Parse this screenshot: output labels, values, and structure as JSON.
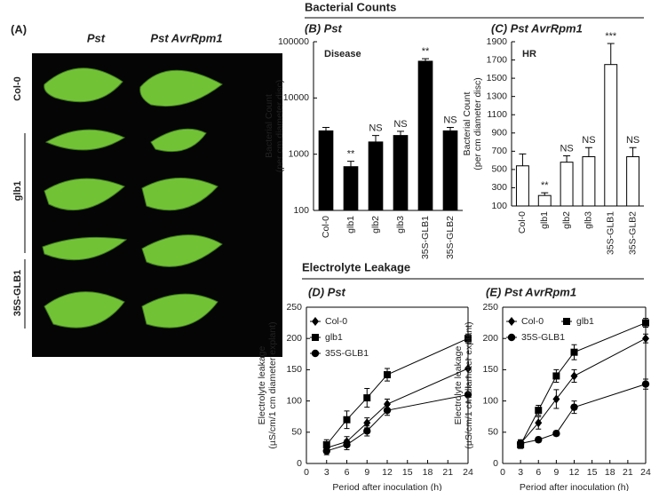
{
  "figure": {
    "section_titles": [
      "Bacterial Counts",
      "Electrolyte Leakage"
    ],
    "photo_panel": {
      "label": "(A)",
      "columns": [
        "Pst",
        "Pst AvrRpm1"
      ],
      "rows": [
        "Col-0",
        "glb1",
        "35S-GLB1"
      ]
    }
  },
  "chart_data": [
    {
      "type": "bar",
      "title": "(B) Pst",
      "label": "Disease",
      "ylabel": [
        "Bacterial Count",
        "(per cm diameter disc)"
      ],
      "categories": [
        "Col-0",
        "glb1",
        "glb2",
        "glb3",
        "35S-GLB1",
        "35S-GLB2"
      ],
      "values": [
        2600,
        600,
        1650,
        2150,
        45000,
        2600
      ],
      "errors": [
        400,
        150,
        500,
        400,
        5000,
        400
      ],
      "annotations": [
        null,
        "**",
        "NS",
        "NS",
        "**",
        "NS"
      ],
      "color": "#000000",
      "log_scale": true,
      "ylim": [
        100,
        100000
      ],
      "yticks": [
        100,
        1000,
        10000,
        100000
      ]
    },
    {
      "type": "bar",
      "title": "(C) Pst AvrRpm1",
      "label": "HR",
      "ylabel": [
        "Bacterial Count",
        "(per cm diameter disc)"
      ],
      "categories": [
        "Col-0",
        "glb1",
        "glb2",
        "glb3",
        "35S-GLB1",
        "35S-GLB2"
      ],
      "values": [
        540,
        215,
        580,
        640,
        1650,
        640
      ],
      "errors": [
        130,
        30,
        70,
        100,
        230,
        100
      ],
      "annotations": [
        null,
        "**",
        "NS",
        "NS",
        "***",
        "NS"
      ],
      "color": "#ffffff",
      "log_scale": false,
      "ylim": [
        100,
        1900
      ],
      "yticks": [
        100,
        300,
        500,
        700,
        900,
        1100,
        1300,
        1500,
        1700,
        1900
      ]
    },
    {
      "type": "line",
      "title": "(D) Pst",
      "xlabel": "Period after inoculation (h)",
      "ylabel": [
        "Electrolyte leakage",
        "(µS/cm/1 cm diameter explant)"
      ],
      "x": [
        3,
        6,
        9,
        12,
        24
      ],
      "series": [
        {
          "name": "Col-0",
          "color": "#000000",
          "marker": "diamond",
          "values": [
            25,
            35,
            65,
            95,
            152
          ],
          "errors": [
            6,
            8,
            8,
            8,
            14
          ]
        },
        {
          "name": "glb1",
          "color": "#000000",
          "marker": "square",
          "values": [
            30,
            70,
            105,
            142,
            200
          ],
          "errors": [
            8,
            14,
            15,
            10,
            7
          ]
        },
        {
          "name": "35S-GLB1",
          "color": "#000000",
          "marker": "circle",
          "values": [
            20,
            30,
            52,
            85,
            110
          ],
          "errors": [
            6,
            8,
            8,
            8,
            12
          ]
        }
      ],
      "xlim": [
        0,
        24
      ],
      "xticks": [
        0,
        3,
        6,
        9,
        12,
        15,
        18,
        21,
        24
      ],
      "ylim": [
        0,
        250
      ],
      "yticks": [
        0,
        50,
        100,
        150,
        200,
        250
      ]
    },
    {
      "type": "line",
      "title": "(E) Pst AvrRpm1",
      "xlabel": "Period after inoculation (h)",
      "ylabel": [
        "Electrolyte leakage",
        "(µS/cm/1 cm diameter explant)"
      ],
      "x": [
        3,
        6,
        9,
        12,
        24
      ],
      "series": [
        {
          "name": "Col-0",
          "color": "#000000",
          "marker": "diamond",
          "values": [
            32,
            65,
            103,
            140,
            200
          ],
          "errors": [
            6,
            10,
            15,
            10,
            7
          ]
        },
        {
          "name": "glb1",
          "color": "#000000",
          "marker": "square",
          "values": [
            30,
            85,
            140,
            178,
            225
          ],
          "errors": [
            6,
            8,
            10,
            12,
            7
          ]
        },
        {
          "name": "35S-GLB1",
          "color": "#000000",
          "marker": "circle",
          "values": [
            32,
            38,
            48,
            90,
            127
          ],
          "errors": [
            5,
            4,
            4,
            10,
            8
          ]
        }
      ],
      "xlim": [
        0,
        24
      ],
      "xticks": [
        0,
        3,
        6,
        9,
        12,
        15,
        18,
        21,
        24
      ],
      "ylim": [
        0,
        250
      ],
      "yticks": [
        0,
        50,
        100,
        150,
        200,
        250
      ]
    }
  ]
}
